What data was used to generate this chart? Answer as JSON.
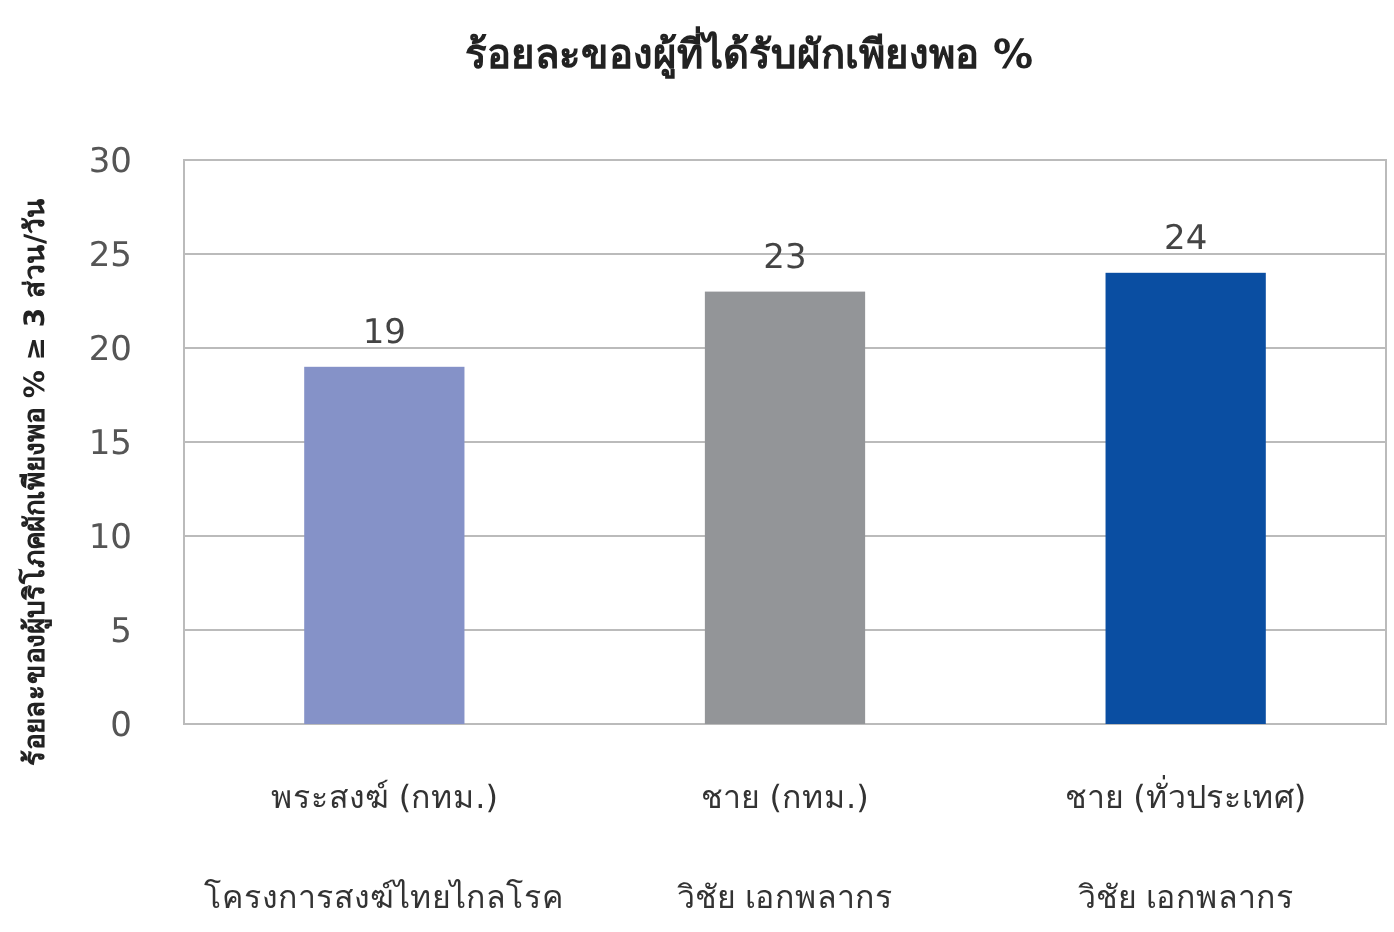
{
  "chart_data": {
    "type": "bar",
    "title": "ร้อยละของผู้ที่ได้รับผักเพียงพอ %",
    "ylabel": "ร้อยละของผู้บริโภคผักเพียงพอ % ≥ 3 ส่วน/วัน",
    "categories": [
      "พระสงฆ์ (กทม.)\nโครงการสงฆ์ไทยไกลโรค",
      "ชาย (กทม.)\nวิชัย เอกพลากร",
      "ชาย (ทั่วประเทศ)\nวิชัย เอกพลากร"
    ],
    "values": [
      19,
      23,
      24
    ],
    "colors": [
      "#8592c8",
      "#939598",
      "#0a4ea2"
    ],
    "ylim": [
      0,
      30
    ],
    "yticks": [
      0,
      5,
      10,
      15,
      20,
      25,
      30
    ],
    "grid": "y",
    "data_labels": true
  }
}
